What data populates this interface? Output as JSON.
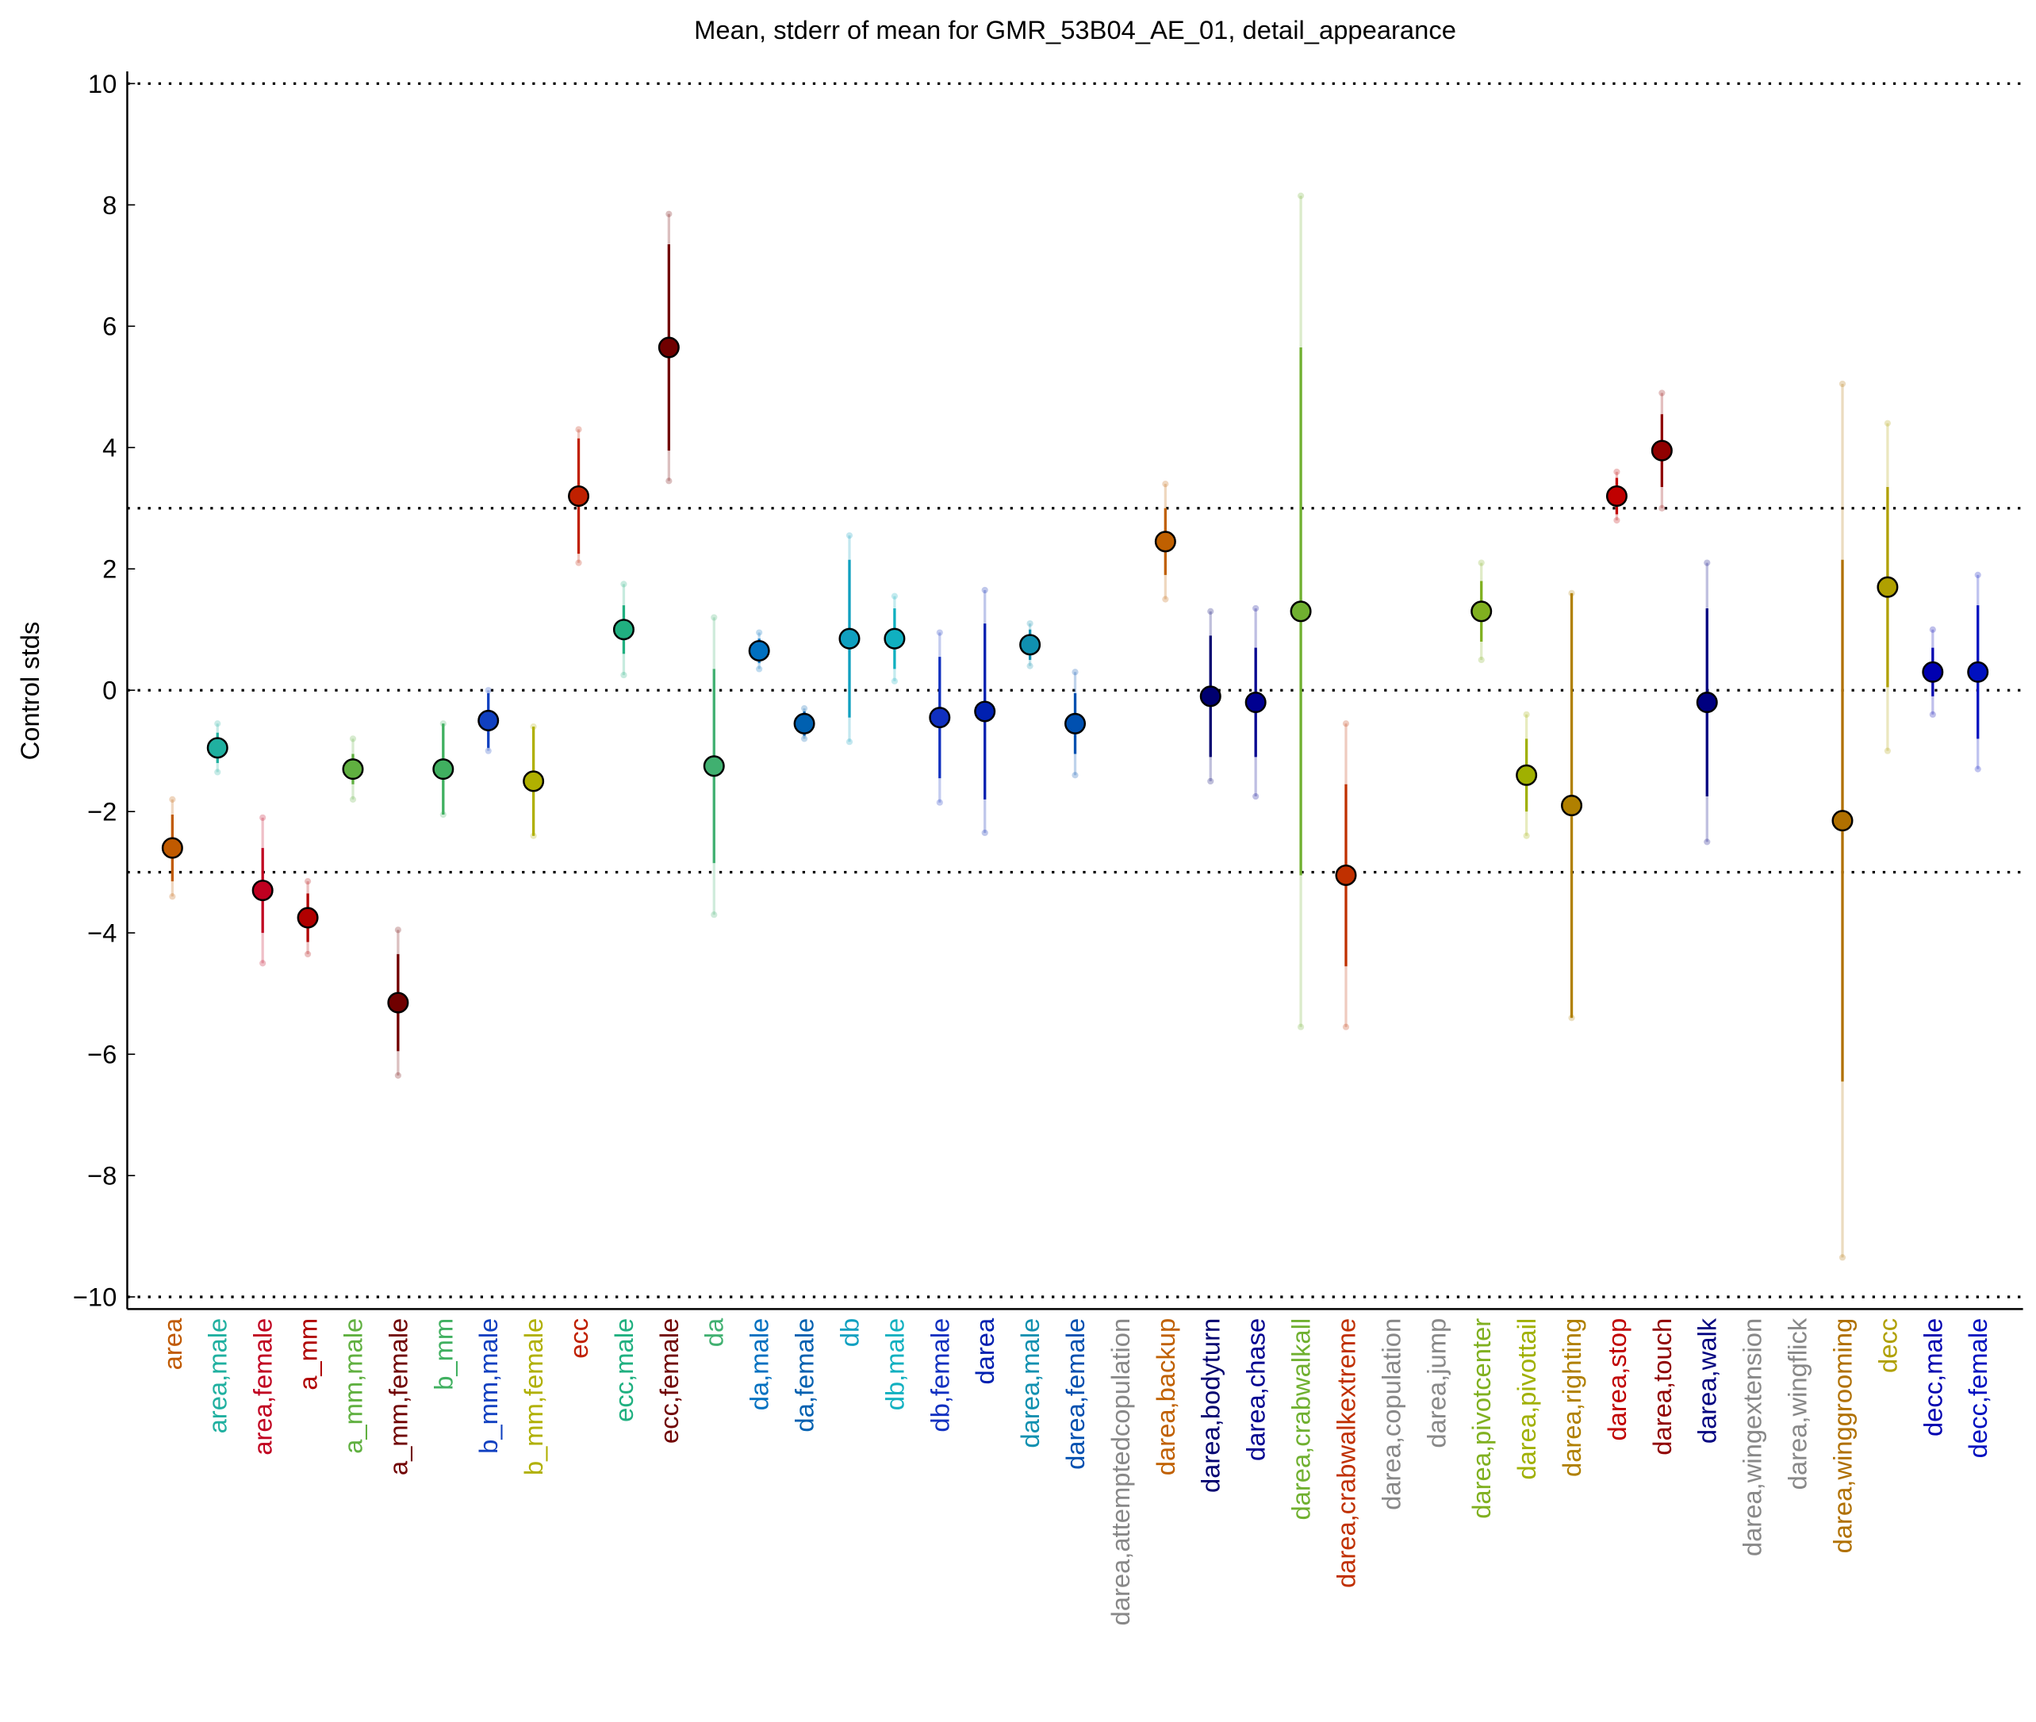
{
  "chart_data": {
    "type": "errorbar",
    "title": "Mean, stderr of mean for GMR_53B04_AE_01, detail_appearance",
    "y_label": "Control stds",
    "categories": [
      "area",
      "area,male",
      "area,female",
      "a_mm",
      "a_mm,male",
      "a_mm,female",
      "b_mm",
      "b_mm,male",
      "b_mm,female",
      "ecc",
      "ecc,male",
      "ecc,female",
      "da",
      "da,male",
      "da,female",
      "db",
      "db,male",
      "db,female",
      "darea",
      "darea,male",
      "darea,female",
      "darea,attemptedcopulation",
      "darea,backup",
      "darea,bodyturn",
      "darea,chase",
      "darea,crabwalkall",
      "darea,crabwalkextreme",
      "darea,copulation",
      "darea,jump",
      "darea,pivotcenter",
      "darea,pivottail",
      "darea,righting",
      "darea,stop",
      "darea,touch",
      "darea,walk",
      "darea,wingextension",
      "darea,wingflick",
      "darea,winggrooming",
      "decc",
      "decc,male",
      "decc,female"
    ],
    "values": [
      -2.6,
      -0.95,
      -3.3,
      -3.75,
      -1.3,
      -5.15,
      -1.3,
      -0.5,
      -1.5,
      3.2,
      1.0,
      5.65,
      -1.25,
      0.65,
      -0.55,
      0.85,
      0.85,
      -0.45,
      -0.35,
      0.75,
      -0.55,
      null,
      2.45,
      -0.1,
      -0.2,
      1.3,
      -3.05,
      null,
      null,
      1.3,
      -1.4,
      -1.9,
      3.2,
      3.95,
      -0.2,
      null,
      null,
      -2.15,
      1.7,
      0.3,
      0.3
    ],
    "stderr": [
      0.55,
      0.25,
      0.7,
      0.4,
      0.25,
      0.8,
      0.75,
      0.45,
      0.9,
      0.95,
      0.4,
      1.7,
      1.6,
      0.2,
      0.2,
      1.3,
      0.5,
      1.0,
      1.45,
      0.25,
      0.5,
      null,
      0.55,
      1.0,
      0.9,
      4.35,
      1.5,
      null,
      null,
      0.5,
      0.6,
      3.5,
      0.3,
      0.6,
      1.55,
      null,
      null,
      4.3,
      1.65,
      0.4,
      1.1
    ],
    "spread": [
      0.8,
      0.4,
      1.2,
      0.6,
      0.5,
      1.2,
      0.75,
      0.5,
      0.9,
      1.1,
      0.75,
      2.2,
      2.45,
      0.3,
      0.25,
      1.7,
      0.7,
      1.4,
      2.0,
      0.35,
      0.85,
      null,
      0.95,
      1.4,
      1.55,
      6.85,
      2.5,
      null,
      null,
      0.8,
      1.0,
      3.5,
      0.4,
      0.95,
      2.3,
      null,
      null,
      7.2,
      2.7,
      0.7,
      1.6
    ],
    "colors": [
      "#c05a00",
      "#20b0a0",
      "#c00020",
      "#b00000",
      "#60b040",
      "#700000",
      "#40b060",
      "#1040c0",
      "#b0b000",
      "#c02000",
      "#20b080",
      "#700000",
      "#40b070",
      "#0070c0",
      "#0060b0",
      "#10a0c0",
      "#10b0c0",
      "#1030c0",
      "#0020b0",
      "#1090b0",
      "#0050b0",
      "#888888",
      "#c06000",
      "#000070",
      "#000090",
      "#70b030",
      "#c03000",
      "#888888",
      "#888888",
      "#80b020",
      "#a0b000",
      "#b08000",
      "#c00000",
      "#900000",
      "#000080",
      "#888888",
      "#888888",
      "#b07000",
      "#b0a000",
      "#0000b0",
      "#0010c0"
    ],
    "ylim": [
      -10.2,
      10.2
    ],
    "yticks": [
      {
        "value": -10,
        "label": "−10"
      },
      {
        "value": -8,
        "label": "−8"
      },
      {
        "value": -6,
        "label": "−6"
      },
      {
        "value": -4,
        "label": "−4"
      },
      {
        "value": -2,
        "label": "−2"
      },
      0,
      2,
      4,
      6,
      8,
      10
    ],
    "reference_lines": [
      -10,
      -3,
      0,
      3,
      10
    ]
  }
}
